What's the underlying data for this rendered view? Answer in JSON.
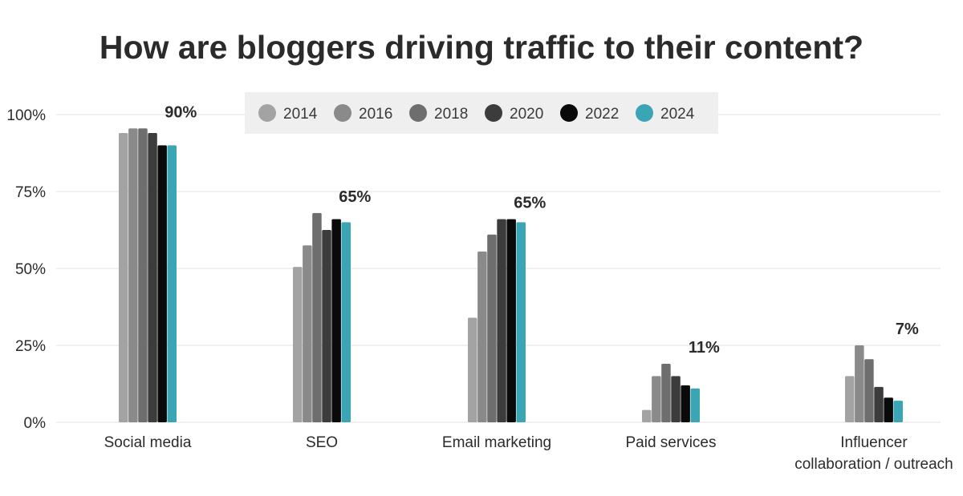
{
  "chart_data": {
    "type": "bar",
    "title": "How are bloggers driving traffic to their content?",
    "xlabel": "",
    "ylabel": "",
    "ylim": [
      0,
      100
    ],
    "yticks": [
      {
        "value": 0,
        "label": "0%"
      },
      {
        "value": 25,
        "label": "25%"
      },
      {
        "value": 50,
        "label": "50%"
      },
      {
        "value": 75,
        "label": "75%"
      },
      {
        "value": 100,
        "label": "100%"
      }
    ],
    "grid": true,
    "legend_position": "top",
    "categories": [
      [
        "Social media"
      ],
      [
        "SEO"
      ],
      [
        "Email marketing"
      ],
      [
        "Paid services"
      ],
      [
        "Influencer",
        "collaboration / outreach"
      ]
    ],
    "series": [
      {
        "name": "2014",
        "color": "#a3a3a3",
        "values": [
          94,
          50.5,
          34,
          4,
          15
        ]
      },
      {
        "name": "2016",
        "color": "#8a8a8a",
        "values": [
          95.5,
          57.5,
          55.5,
          15,
          25
        ]
      },
      {
        "name": "2018",
        "color": "#6e6e6e",
        "values": [
          95.5,
          68,
          61,
          19,
          20.5
        ]
      },
      {
        "name": "2020",
        "color": "#3c3c3c",
        "values": [
          94,
          62.5,
          66,
          15,
          11.5
        ]
      },
      {
        "name": "2022",
        "color": "#0a0a0a",
        "values": [
          90,
          66,
          66,
          12,
          8
        ]
      },
      {
        "name": "2024",
        "color": "#3aa5b5",
        "values": [
          90,
          65,
          65,
          11,
          7
        ]
      }
    ],
    "value_labels": [
      "90%",
      "65%",
      "65%",
      "11%",
      "7%"
    ],
    "grid_color": "#e6e6e6",
    "legend_bg": "#efefef"
  }
}
